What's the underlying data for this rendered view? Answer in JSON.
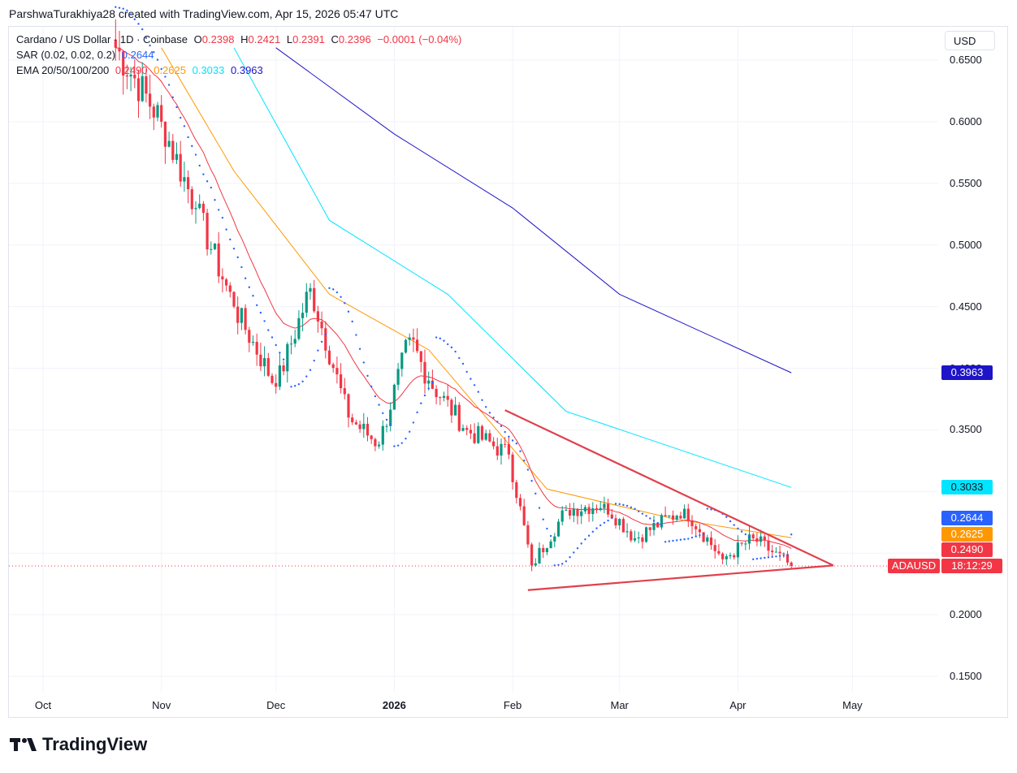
{
  "credit": "ParshwaTurakhiya28 created with TradingView.com, Apr 15, 2026 05:47 UTC",
  "brand": "TradingView",
  "currency": "USD",
  "legend": {
    "symbol": "Cardano / US Dollar · 1D · Coinbase",
    "o_label": "O",
    "o_value": "0.2398",
    "h_label": "H",
    "h_value": "0.2421",
    "l_label": "L",
    "l_value": "0.2391",
    "c_label": "C",
    "c_value": "0.2396",
    "change": "−0.0001 (−0.04%)",
    "sar_label": "SAR (0.02, 0.02, 0.2)",
    "sar_value": "0.2644",
    "ema_label": "EMA 20/50/100/200",
    "ema20": "0.2490",
    "ema50": "0.2625",
    "ema100": "0.3033",
    "ema200": "0.3963"
  },
  "colors": {
    "up": "#089981",
    "down": "#f23645",
    "sar": "#2962ff",
    "ema20": "#f23645",
    "ema50": "#ff9800",
    "ema100": "#00e5ff",
    "ema200": "#1e14c8",
    "trendline": "#e0404c",
    "grid": "#f0f3fa"
  },
  "price_labels": {
    "ema200": "0.3963",
    "ema100": "0.3033",
    "sar": "0.2644",
    "ema50": "0.2625",
    "ema20": "0.2490",
    "symbol": "ADAUSD",
    "timer": "18:12:29"
  },
  "chart_data": {
    "type": "candlestick",
    "y_ticks": [
      "0.6500",
      "0.6000",
      "0.5500",
      "0.5000",
      "0.4500",
      "0.4000",
      "0.3500",
      "0.3000",
      "0.2500",
      "0.2000",
      "0.1500"
    ],
    "x_ticks": [
      "Oct",
      "Nov",
      "Dec",
      "2026",
      "Feb",
      "Mar",
      "Apr",
      "May"
    ],
    "ylim": [
      0.14,
      0.66
    ],
    "last_price": 0.2396,
    "key_points": [
      {
        "date": "2025-10-20",
        "close": 0.66
      },
      {
        "date": "2025-11-01",
        "close": 0.6
      },
      {
        "date": "2025-11-10",
        "close": 0.53
      },
      {
        "date": "2025-11-20",
        "close": 0.45
      },
      {
        "date": "2025-12-01",
        "close": 0.385
      },
      {
        "date": "2025-12-10",
        "close": 0.465
      },
      {
        "date": "2025-12-20",
        "close": 0.36
      },
      {
        "date": "2025-12-28",
        "close": 0.338
      },
      {
        "date": "2026-01-05",
        "close": 0.425
      },
      {
        "date": "2026-01-10",
        "close": 0.39
      },
      {
        "date": "2026-01-20",
        "close": 0.35
      },
      {
        "date": "2026-01-31",
        "close": 0.33
      },
      {
        "date": "2026-02-06",
        "close": 0.24
      },
      {
        "date": "2026-02-15",
        "close": 0.285
      },
      {
        "date": "2026-02-25",
        "close": 0.29
      },
      {
        "date": "2026-03-05",
        "close": 0.262
      },
      {
        "date": "2026-03-18",
        "close": 0.286
      },
      {
        "date": "2026-03-28",
        "close": 0.245
      },
      {
        "date": "2026-04-05",
        "close": 0.262
      },
      {
        "date": "2026-04-15",
        "close": 0.2396
      }
    ],
    "ema200_points": [
      {
        "date": "2025-12-01",
        "value": 0.66
      },
      {
        "date": "2026-01-01",
        "value": 0.59
      },
      {
        "date": "2026-02-01",
        "value": 0.53
      },
      {
        "date": "2026-03-01",
        "value": 0.46
      },
      {
        "date": "2026-04-15",
        "value": 0.3963
      }
    ],
    "ema100_points": [
      {
        "date": "2025-11-20",
        "value": 0.66
      },
      {
        "date": "2025-12-15",
        "value": 0.52
      },
      {
        "date": "2026-01-15",
        "value": 0.46
      },
      {
        "date": "2026-02-15",
        "value": 0.365
      },
      {
        "date": "2026-04-15",
        "value": 0.3033
      }
    ],
    "ema50_points": [
      {
        "date": "2025-11-01",
        "value": 0.66
      },
      {
        "date": "2025-11-20",
        "value": 0.56
      },
      {
        "date": "2025-12-15",
        "value": 0.46
      },
      {
        "date": "2026-01-10",
        "value": 0.415
      },
      {
        "date": "2026-02-10",
        "value": 0.302
      },
      {
        "date": "2026-03-15",
        "value": 0.278
      },
      {
        "date": "2026-04-15",
        "value": 0.2625
      }
    ],
    "trendlines": [
      {
        "from": {
          "date": "2026-01-30",
          "value": 0.366
        },
        "to": {
          "date": "2026-04-26",
          "value": 0.24
        }
      },
      {
        "from": {
          "date": "2026-02-05",
          "value": 0.22
        },
        "to": {
          "date": "2026-04-26",
          "value": 0.24
        }
      }
    ]
  }
}
